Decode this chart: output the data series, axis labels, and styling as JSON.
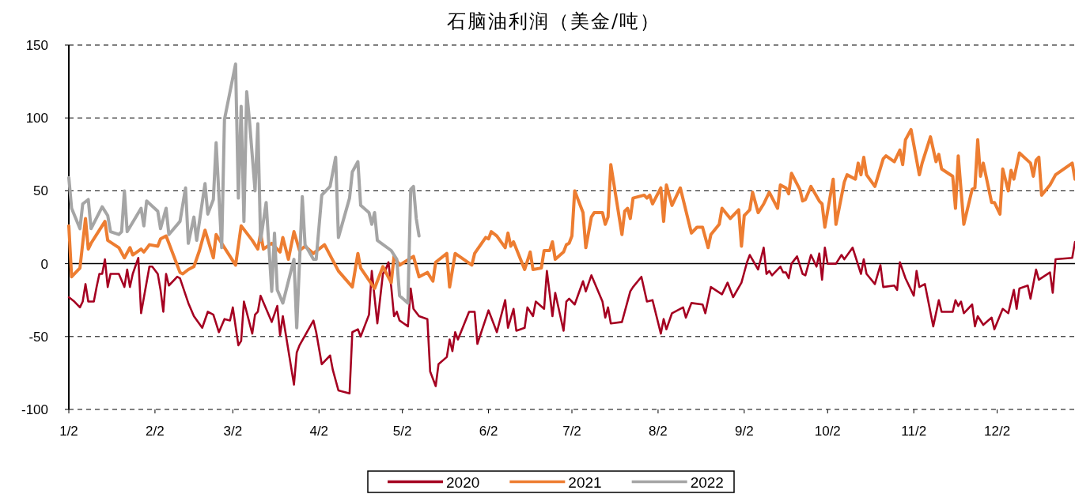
{
  "chart_data": {
    "type": "line",
    "title": "石脑油利润（美金/吨）",
    "xlim": [
      "--01-02",
      "--12-30"
    ],
    "ylim": [
      -100,
      150
    ],
    "yticks": [
      -100,
      -50,
      0,
      50,
      100,
      150
    ],
    "xticks": [
      {
        "value": "--01-02",
        "label": "1/2"
      },
      {
        "value": "--02-02",
        "label": "2/2"
      },
      {
        "value": "--03-02",
        "label": "3/2"
      },
      {
        "value": "--04-02",
        "label": "4/2"
      },
      {
        "value": "--05-02",
        "label": "5/2"
      },
      {
        "value": "--06-02",
        "label": "6/2"
      },
      {
        "value": "--07-02",
        "label": "7/2"
      },
      {
        "value": "--08-02",
        "label": "8/2"
      },
      {
        "value": "--09-02",
        "label": "9/2"
      },
      {
        "value": "--10-02",
        "label": "10/2"
      },
      {
        "value": "--11-02",
        "label": "11/2"
      },
      {
        "value": "--12-02",
        "label": "12/2"
      }
    ],
    "grid": "y",
    "legend": "bottom",
    "series": [
      {
        "name": "2020",
        "color": "#a50021",
        "x": [
          "--01-02",
          "--01-04",
          "--01-06",
          "--01-07",
          "--01-08",
          "--01-09",
          "--01-11",
          "--01-12",
          "--01-13",
          "--01-14",
          "--01-15",
          "--01-16",
          "--01-17",
          "--01-20",
          "--01-22",
          "--01-23",
          "--01-24",
          "--01-25",
          "--01-27",
          "--01-28",
          "--01-31",
          "--02-01",
          "--02-03",
          "--02-04",
          "--02-05",
          "--02-06",
          "--02-07",
          "--02-10",
          "--02-11",
          "--02-14",
          "--02-16",
          "--02-19",
          "--02-21",
          "--02-23",
          "--02-25",
          "--02-27",
          "--03-01",
          "--03-02",
          "--03-04",
          "--03-05",
          "--03-06",
          "--03-09",
          "--03-10",
          "--03-11",
          "--03-12",
          "--03-16",
          "--03-18",
          "--03-19",
          "--03-20",
          "--03-24",
          "--03-25",
          "--03-26",
          "--03-31",
          "--04-01",
          "--04-03",
          "--04-06",
          "--04-07",
          "--04-09",
          "--04-13",
          "--04-14",
          "--04-16",
          "--04-17",
          "--04-20",
          "--04-21",
          "--04-23",
          "--04-25",
          "--04-26",
          "--04-27",
          "--04-28",
          "--04-29",
          "--04-30",
          "--05-01",
          "--05-04",
          "--05-05",
          "--05-06",
          "--05-08",
          "--05-11",
          "--05-12",
          "--05-14",
          "--05-15",
          "--05-18",
          "--05-19",
          "--05-20",
          "--05-21",
          "--05-22",
          "--05-26",
          "--05-28",
          "--05-29",
          "--06-02",
          "--06-05",
          "--06-08",
          "--06-09",
          "--06-11",
          "--06-12",
          "--06-15",
          "--06-16",
          "--06-18",
          "--06-19",
          "--06-22",
          "--06-23",
          "--06-25",
          "--06-26",
          "--06-29",
          "--06-30",
          "--07-01",
          "--07-03",
          "--07-06",
          "--07-07",
          "--07-09",
          "--07-13",
          "--07-14",
          "--07-15",
          "--07-16",
          "--07-20",
          "--07-23",
          "--07-24",
          "--07-27",
          "--07-29",
          "--07-31",
          "--08-03",
          "--08-04",
          "--08-05",
          "--08-07",
          "--08-11",
          "--08-12",
          "--08-14",
          "--08-18",
          "--08-19",
          "--08-21",
          "--08-25",
          "--08-27",
          "--08-29",
          "--09-01",
          "--09-03",
          "--09-04",
          "--09-07",
          "--09-09",
          "--09-10",
          "--09-11",
          "--09-12",
          "--09-15",
          "--09-16",
          "--09-17",
          "--09-18",
          "--09-19",
          "--09-21",
          "--09-23",
          "--09-24",
          "--09-26",
          "--09-28",
          "--09-29",
          "--09-30",
          "--10-01",
          "--10-02",
          "--10-05",
          "--10-07",
          "--10-08",
          "--10-11",
          "--10-14",
          "--10-15",
          "--10-16",
          "--10-19",
          "--10-21",
          "--10-22",
          "--10-26",
          "--10-27",
          "--10-28",
          "--10-30",
          "--11-02",
          "--11-03",
          "--11-04",
          "--11-06",
          "--11-09",
          "--11-11",
          "--11-12",
          "--11-16",
          "--11-17",
          "--11-18",
          "--11-19",
          "--11-20",
          "--11-23",
          "--11-24",
          "--11-25",
          "--11-27",
          "--11-30",
          "--12-01",
          "--12-04",
          "--12-06",
          "--12-08",
          "--12-09",
          "--12-10",
          "--12-13",
          "--12-14",
          "--12-16",
          "--12-17",
          "--12-21",
          "--12-22",
          "--12-23",
          "--12-29",
          "--12-30"
        ],
        "values": [
          -23,
          -26,
          -30,
          -26,
          -14,
          -26,
          -26,
          -16,
          -7,
          -7,
          3,
          -16,
          -7,
          -7,
          -16,
          -4,
          -16,
          -7,
          4,
          -34,
          -2,
          -2,
          -7,
          -18,
          -33,
          -7,
          -15,
          -9,
          -10,
          -27,
          -36,
          -44,
          -33,
          -35,
          -47,
          -38,
          -39,
          -30,
          -56,
          -53,
          -26,
          -48,
          -35,
          -33,
          -22,
          -40,
          -29,
          -49,
          -36,
          -83,
          -61,
          -56,
          -39,
          -47,
          -69,
          -63,
          -73,
          -87,
          -89,
          -47,
          -45,
          -50,
          -35,
          -5,
          -41,
          -7,
          -4,
          1,
          -16,
          -36,
          -33,
          -39,
          -43,
          -17,
          -31,
          -36,
          -38,
          -74,
          -84,
          -69,
          -64,
          -52,
          -60,
          -47,
          -52,
          -33,
          -33,
          -55,
          -32,
          -47,
          -25,
          -44,
          -31,
          -46,
          -44,
          -30,
          -36,
          -26,
          -31,
          -5,
          -36,
          -20,
          -46,
          -26,
          -24,
          -28,
          -12,
          -19,
          -8,
          -26,
          -37,
          -30,
          -41,
          -40,
          -19,
          -16,
          -9,
          -26,
          -25,
          -48,
          -38,
          -45,
          -34,
          -30,
          -37,
          -27,
          -28,
          -34,
          -16,
          -21,
          -13,
          -23,
          -13,
          1,
          6,
          -4,
          11,
          -7,
          -5,
          -8,
          -2,
          -6,
          -6,
          -10,
          0,
          5,
          -7,
          -8,
          6,
          -2,
          7,
          -11,
          11,
          0,
          0,
          6,
          3,
          11,
          -7,
          3,
          -7,
          -14,
          -1,
          -16,
          -15,
          -18,
          1,
          -10,
          -22,
          -5,
          -16,
          -14,
          -43,
          -25,
          -33,
          -33,
          -25,
          -29,
          -26,
          -34,
          -28,
          -43,
          -36,
          -42,
          -37,
          -45,
          -31,
          -34,
          -18,
          -31,
          -17,
          -15,
          -24,
          -4,
          -11,
          -6,
          -20,
          3,
          4,
          15
        ]
      },
      {
        "name": "2021",
        "color": "#ed7d31",
        "x": [
          "--01-02",
          "--01-03",
          "--01-06",
          "--01-08",
          "--01-09",
          "--01-10",
          "--01-13",
          "--01-15",
          "--01-16",
          "--01-20",
          "--01-22",
          "--01-24",
          "--01-25",
          "--01-28",
          "--01-29",
          "--01-31",
          "--02-03",
          "--02-04",
          "--02-06",
          "--02-11",
          "--02-12",
          "--02-14",
          "--02-16",
          "--02-18",
          "--02-20",
          "--02-23",
          "--02-24",
          "--02-27",
          "--03-03",
          "--03-05",
          "--03-09",
          "--03-11",
          "--03-12",
          "--03-13",
          "--03-16",
          "--03-19",
          "--03-20",
          "--03-22",
          "--03-24",
          "--03-26",
          "--03-28",
          "--03-31",
          "--04-04",
          "--04-09",
          "--04-14",
          "--04-16",
          "--04-17",
          "--04-22",
          "--04-25",
          "--04-28",
          "--04-29",
          "--05-01",
          "--05-06",
          "--05-08",
          "--05-11",
          "--05-13",
          "--05-14",
          "--05-18",
          "--05-19",
          "--05-21",
          "--05-27",
          "--05-28",
          "--06-01",
          "--06-02",
          "--06-03",
          "--06-05",
          "--06-08",
          "--06-09",
          "--06-10",
          "--06-11",
          "--06-15",
          "--06-17",
          "--06-18",
          "--06-21",
          "--06-22",
          "--06-24",
          "--06-25",
          "--06-26",
          "--06-29",
          "--06-30",
          "--07-01",
          "--07-02",
          "--07-03",
          "--07-06",
          "--07-07",
          "--07-09",
          "--07-10",
          "--07-13",
          "--07-14",
          "--07-15",
          "--07-16",
          "--07-20",
          "--07-21",
          "--07-22",
          "--07-23",
          "--07-24",
          "--07-28",
          "--07-29",
          "--07-30",
          "--07-31",
          "--08-03",
          "--08-04",
          "--08-05",
          "--08-07",
          "--08-10",
          "--08-14",
          "--08-16",
          "--08-18",
          "--08-20",
          "--08-21",
          "--08-24",
          "--08-25",
          "--08-28",
          "--08-31",
          "--09-01",
          "--09-02",
          "--09-03",
          "--09-04",
          "--09-05",
          "--09-07",
          "--09-09",
          "--09-11",
          "--09-14",
          "--09-15",
          "--09-17",
          "--09-18",
          "--09-19",
          "--09-22",
          "--09-23",
          "--09-24",
          "--09-26",
          "--09-29",
          "--09-30",
          "--10-01",
          "--10-04",
          "--10-05",
          "--10-08",
          "--10-09",
          "--10-12",
          "--10-13",
          "--10-14",
          "--10-15",
          "--10-16",
          "--10-19",
          "--10-22",
          "--10-23",
          "--10-26",
          "--10-28",
          "--10-29",
          "--10-30",
          "--11-01",
          "--11-04",
          "--11-05",
          "--11-08",
          "--11-10",
          "--11-11",
          "--11-12",
          "--11-16",
          "--11-17",
          "--11-18",
          "--11-20",
          "--11-23",
          "--11-24",
          "--11-25",
          "--11-26",
          "--11-27",
          "--11-30",
          "--12-01",
          "--12-03",
          "--12-04",
          "--12-06",
          "--12-07",
          "--12-08",
          "--12-10",
          "--12-14",
          "--12-15",
          "--12-16",
          "--12-17",
          "--12-18",
          "--12-21",
          "--12-23",
          "--12-29",
          "--12-30"
        ],
        "values": [
          26,
          -9,
          -3,
          31,
          10,
          14,
          23,
          29,
          16,
          11,
          4,
          11,
          6,
          10,
          8,
          13,
          12,
          17,
          19,
          -6,
          -7,
          -4,
          -2,
          9,
          23,
          4,
          20,
          11,
          -1,
          26,
          16,
          10,
          21,
          10,
          14,
          8,
          18,
          3,
          22,
          9,
          12,
          7,
          13,
          -5,
          -16,
          7,
          -3,
          -17,
          -2,
          -13,
          5,
          -1,
          5,
          -9,
          -6,
          -12,
          1,
          7,
          -16,
          7,
          -1,
          7,
          18,
          17,
          22,
          19,
          11,
          21,
          12,
          15,
          -4,
          8,
          -4,
          -3,
          9,
          9,
          15,
          3,
          8,
          13,
          14,
          19,
          50,
          35,
          11,
          32,
          35,
          35,
          27,
          32,
          68,
          20,
          36,
          38,
          31,
          45,
          47,
          45,
          47,
          41,
          52,
          29,
          54,
          40,
          52,
          21,
          25,
          25,
          11,
          20,
          27,
          38,
          31,
          37,
          12,
          33,
          35,
          37,
          49,
          35,
          41,
          49,
          38,
          54,
          52,
          48,
          62,
          51,
          43,
          44,
          53,
          43,
          41,
          25,
          58,
          27,
          56,
          61,
          58,
          69,
          61,
          73,
          61,
          53,
          72,
          74,
          70,
          78,
          68,
          85,
          92,
          61,
          69,
          87,
          70,
          75,
          65,
          60,
          38,
          74,
          27,
          51,
          52,
          85,
          60,
          69,
          42,
          42,
          34,
          65,
          50,
          64,
          58,
          76,
          69,
          60,
          71,
          73,
          47,
          54,
          61,
          69,
          58
        ]
      },
      {
        "name": "2022",
        "color": "#a5a5a5",
        "x": [
          "--01-02",
          "--01-03",
          "--01-06",
          "--01-07",
          "--01-09",
          "--01-10",
          "--01-14",
          "--01-16",
          "--01-17",
          "--01-20",
          "--01-21",
          "--01-22",
          "--01-23",
          "--01-28",
          "--01-29",
          "--01-30",
          "--02-03",
          "--02-04",
          "--02-06",
          "--02-07",
          "--02-11",
          "--02-13",
          "--02-14",
          "--02-16",
          "--02-17",
          "--02-20",
          "--02-21",
          "--02-23",
          "--02-24",
          "--02-26",
          "--02-27",
          "--03-03",
          "--03-04",
          "--03-05",
          "--03-06",
          "--03-07",
          "--03-08",
          "--03-10",
          "--03-11",
          "--03-12",
          "--03-14",
          "--03-16",
          "--03-17",
          "--03-18",
          "--03-20",
          "--03-24",
          "--03-25",
          "--03-27",
          "--03-28",
          "--03-31",
          "--04-01",
          "--04-03",
          "--04-06",
          "--04-08",
          "--04-09",
          "--04-13",
          "--04-14",
          "--04-16",
          "--04-17",
          "--04-20",
          "--04-21",
          "--04-22",
          "--04-23",
          "--04-28",
          "--04-30",
          "--05-01",
          "--05-04",
          "--05-05",
          "--05-06",
          "--05-07",
          "--05-08"
        ],
        "values": [
          59,
          38,
          24,
          41,
          44,
          24,
          39,
          33,
          22,
          20,
          22,
          50,
          22,
          38,
          26,
          43,
          36,
          24,
          38,
          20,
          29,
          52,
          14,
          32,
          16,
          55,
          34,
          44,
          83,
          11,
          99,
          137,
          45,
          108,
          29,
          118,
          98,
          50,
          96,
          16,
          42,
          -19,
          21,
          -18,
          -27,
          3,
          -44,
          46,
          13,
          3,
          3,
          47,
          53,
          73,
          18,
          45,
          63,
          70,
          40,
          35,
          27,
          35,
          16,
          9,
          3,
          -22,
          -27,
          51,
          53,
          31,
          19
        ]
      }
    ]
  }
}
